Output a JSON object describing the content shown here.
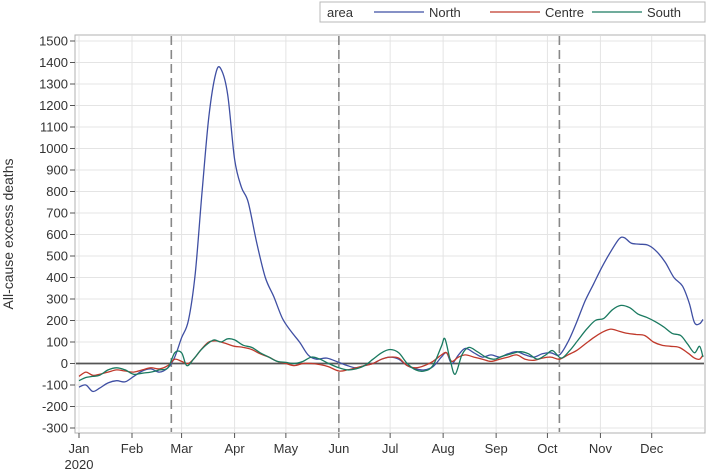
{
  "chart_data": {
    "type": "line",
    "xlabel": "",
    "ylabel": "All-cause excess deaths",
    "ylim": [
      -300,
      1500
    ],
    "yticks": [
      -300,
      -200,
      -100,
      0,
      100,
      200,
      300,
      400,
      500,
      600,
      700,
      800,
      900,
      1000,
      1100,
      1200,
      1300,
      1400,
      1500
    ],
    "xlim": [
      "2020-01-01",
      "2020-12-31"
    ],
    "xticks": [
      {
        "date": "2020-01-01",
        "label": "Jan",
        "sublabel": "2020"
      },
      {
        "date": "2020-02-01",
        "label": "Feb"
      },
      {
        "date": "2020-03-01",
        "label": "Mar"
      },
      {
        "date": "2020-04-01",
        "label": "Apr"
      },
      {
        "date": "2020-05-01",
        "label": "May"
      },
      {
        "date": "2020-06-01",
        "label": "Jun"
      },
      {
        "date": "2020-07-01",
        "label": "Jul"
      },
      {
        "date": "2020-08-01",
        "label": "Aug"
      },
      {
        "date": "2020-09-01",
        "label": "Sep"
      },
      {
        "date": "2020-10-01",
        "label": "Oct"
      },
      {
        "date": "2020-11-01",
        "label": "Nov"
      },
      {
        "date": "2020-12-01",
        "label": "Dec"
      }
    ],
    "grid": true,
    "reference_lines": {
      "horizontal": [
        0
      ],
      "vertical_dates": [
        "2020-02-24",
        "2020-06-01",
        "2020-10-08"
      ]
    },
    "legend": {
      "title": "area",
      "placement": "top-right"
    },
    "series": [
      {
        "name": "North",
        "color": "#3f4fa3",
        "points": [
          [
            "2020-01-01",
            -110
          ],
          [
            "2020-01-05",
            -100
          ],
          [
            "2020-01-09",
            -130
          ],
          [
            "2020-01-13",
            -115
          ],
          [
            "2020-01-18",
            -90
          ],
          [
            "2020-01-23",
            -80
          ],
          [
            "2020-01-28",
            -85
          ],
          [
            "2020-02-02",
            -60
          ],
          [
            "2020-02-07",
            -35
          ],
          [
            "2020-02-12",
            -25
          ],
          [
            "2020-02-17",
            -40
          ],
          [
            "2020-02-22",
            -20
          ],
          [
            "2020-02-26",
            30
          ],
          [
            "2020-03-01",
            120
          ],
          [
            "2020-03-05",
            200
          ],
          [
            "2020-03-09",
            420
          ],
          [
            "2020-03-13",
            800
          ],
          [
            "2020-03-17",
            1150
          ],
          [
            "2020-03-21",
            1350
          ],
          [
            "2020-03-24",
            1370
          ],
          [
            "2020-03-28",
            1250
          ],
          [
            "2020-04-01",
            950
          ],
          [
            "2020-04-05",
            820
          ],
          [
            "2020-04-09",
            750
          ],
          [
            "2020-04-14",
            560
          ],
          [
            "2020-04-19",
            400
          ],
          [
            "2020-04-24",
            310
          ],
          [
            "2020-04-29",
            210
          ],
          [
            "2020-05-04",
            150
          ],
          [
            "2020-05-09",
            100
          ],
          [
            "2020-05-14",
            40
          ],
          [
            "2020-05-19",
            20
          ],
          [
            "2020-05-25",
            25
          ],
          [
            "2020-06-01",
            5
          ],
          [
            "2020-06-06",
            -10
          ],
          [
            "2020-06-11",
            -20
          ],
          [
            "2020-06-16",
            -10
          ],
          [
            "2020-06-21",
            0
          ],
          [
            "2020-06-26",
            20
          ],
          [
            "2020-07-01",
            30
          ],
          [
            "2020-07-06",
            20
          ],
          [
            "2020-07-11",
            -10
          ],
          [
            "2020-07-16",
            -25
          ],
          [
            "2020-07-21",
            -30
          ],
          [
            "2020-07-26",
            -15
          ],
          [
            "2020-07-31",
            30
          ],
          [
            "2020-08-03",
            50
          ],
          [
            "2020-08-06",
            0
          ],
          [
            "2020-08-10",
            40
          ],
          [
            "2020-08-14",
            70
          ],
          [
            "2020-08-19",
            50
          ],
          [
            "2020-08-24",
            30
          ],
          [
            "2020-08-29",
            40
          ],
          [
            "2020-09-03",
            30
          ],
          [
            "2020-09-08",
            45
          ],
          [
            "2020-09-13",
            55
          ],
          [
            "2020-09-18",
            40
          ],
          [
            "2020-09-23",
            30
          ],
          [
            "2020-09-28",
            45
          ],
          [
            "2020-10-03",
            50
          ],
          [
            "2020-10-08",
            40
          ],
          [
            "2020-10-13",
            100
          ],
          [
            "2020-10-18",
            190
          ],
          [
            "2020-10-23",
            290
          ],
          [
            "2020-10-28",
            370
          ],
          [
            "2020-11-02",
            450
          ],
          [
            "2020-11-07",
            520
          ],
          [
            "2020-11-12",
            580
          ],
          [
            "2020-11-15",
            585
          ],
          [
            "2020-11-19",
            560
          ],
          [
            "2020-11-24",
            555
          ],
          [
            "2020-11-29",
            550
          ],
          [
            "2020-12-04",
            520
          ],
          [
            "2020-12-09",
            470
          ],
          [
            "2020-12-14",
            400
          ],
          [
            "2020-12-19",
            360
          ],
          [
            "2020-12-23",
            280
          ],
          [
            "2020-12-26",
            190
          ],
          [
            "2020-12-29",
            185
          ],
          [
            "2020-12-31",
            205
          ]
        ]
      },
      {
        "name": "Centre",
        "color": "#c0392b",
        "points": [
          [
            "2020-01-01",
            -60
          ],
          [
            "2020-01-05",
            -40
          ],
          [
            "2020-01-09",
            -55
          ],
          [
            "2020-01-13",
            -50
          ],
          [
            "2020-01-18",
            -40
          ],
          [
            "2020-01-23",
            -30
          ],
          [
            "2020-01-28",
            -35
          ],
          [
            "2020-02-02",
            -40
          ],
          [
            "2020-02-07",
            -30
          ],
          [
            "2020-02-12",
            -20
          ],
          [
            "2020-02-17",
            -25
          ],
          [
            "2020-02-22",
            -10
          ],
          [
            "2020-02-26",
            20
          ],
          [
            "2020-03-01",
            10
          ],
          [
            "2020-03-05",
            0
          ],
          [
            "2020-03-09",
            30
          ],
          [
            "2020-03-13",
            70
          ],
          [
            "2020-03-17",
            100
          ],
          [
            "2020-03-21",
            105
          ],
          [
            "2020-03-24",
            100
          ],
          [
            "2020-03-28",
            90
          ],
          [
            "2020-04-01",
            80
          ],
          [
            "2020-04-06",
            75
          ],
          [
            "2020-04-11",
            65
          ],
          [
            "2020-04-16",
            45
          ],
          [
            "2020-04-21",
            30
          ],
          [
            "2020-04-26",
            10
          ],
          [
            "2020-05-01",
            0
          ],
          [
            "2020-05-06",
            -10
          ],
          [
            "2020-05-11",
            0
          ],
          [
            "2020-05-16",
            0
          ],
          [
            "2020-05-21",
            -5
          ],
          [
            "2020-05-26",
            -15
          ],
          [
            "2020-06-01",
            -35
          ],
          [
            "2020-06-06",
            -30
          ],
          [
            "2020-06-11",
            -20
          ],
          [
            "2020-06-16",
            -10
          ],
          [
            "2020-06-21",
            0
          ],
          [
            "2020-06-26",
            20
          ],
          [
            "2020-07-01",
            30
          ],
          [
            "2020-07-06",
            25
          ],
          [
            "2020-07-11",
            -10
          ],
          [
            "2020-07-16",
            -20
          ],
          [
            "2020-07-21",
            -10
          ],
          [
            "2020-07-26",
            10
          ],
          [
            "2020-07-31",
            40
          ],
          [
            "2020-08-03",
            50
          ],
          [
            "2020-08-06",
            10
          ],
          [
            "2020-08-10",
            30
          ],
          [
            "2020-08-14",
            40
          ],
          [
            "2020-08-19",
            30
          ],
          [
            "2020-08-24",
            20
          ],
          [
            "2020-08-29",
            10
          ],
          [
            "2020-09-03",
            20
          ],
          [
            "2020-09-08",
            30
          ],
          [
            "2020-09-13",
            40
          ],
          [
            "2020-09-18",
            20
          ],
          [
            "2020-09-23",
            15
          ],
          [
            "2020-09-28",
            25
          ],
          [
            "2020-10-03",
            30
          ],
          [
            "2020-10-08",
            20
          ],
          [
            "2020-10-13",
            40
          ],
          [
            "2020-10-18",
            60
          ],
          [
            "2020-10-23",
            90
          ],
          [
            "2020-10-28",
            120
          ],
          [
            "2020-11-02",
            145
          ],
          [
            "2020-11-07",
            160
          ],
          [
            "2020-11-12",
            150
          ],
          [
            "2020-11-17",
            140
          ],
          [
            "2020-11-22",
            135
          ],
          [
            "2020-11-27",
            130
          ],
          [
            "2020-12-02",
            100
          ],
          [
            "2020-12-07",
            85
          ],
          [
            "2020-12-12",
            80
          ],
          [
            "2020-12-17",
            75
          ],
          [
            "2020-12-22",
            50
          ],
          [
            "2020-12-26",
            25
          ],
          [
            "2020-12-29",
            20
          ],
          [
            "2020-12-31",
            40
          ]
        ]
      },
      {
        "name": "South",
        "color": "#1a7a60",
        "points": [
          [
            "2020-01-01",
            -80
          ],
          [
            "2020-01-05",
            -65
          ],
          [
            "2020-01-09",
            -60
          ],
          [
            "2020-01-13",
            -55
          ],
          [
            "2020-01-18",
            -30
          ],
          [
            "2020-01-23",
            -20
          ],
          [
            "2020-01-28",
            -30
          ],
          [
            "2020-02-02",
            -50
          ],
          [
            "2020-02-07",
            -45
          ],
          [
            "2020-02-12",
            -40
          ],
          [
            "2020-02-17",
            -30
          ],
          [
            "2020-02-22",
            -20
          ],
          [
            "2020-02-26",
            50
          ],
          [
            "2020-03-01",
            50
          ],
          [
            "2020-03-04",
            -10
          ],
          [
            "2020-03-08",
            20
          ],
          [
            "2020-03-12",
            60
          ],
          [
            "2020-03-16",
            90
          ],
          [
            "2020-03-20",
            110
          ],
          [
            "2020-03-24",
            100
          ],
          [
            "2020-03-28",
            115
          ],
          [
            "2020-04-01",
            110
          ],
          [
            "2020-04-06",
            85
          ],
          [
            "2020-04-11",
            75
          ],
          [
            "2020-04-16",
            50
          ],
          [
            "2020-04-21",
            30
          ],
          [
            "2020-04-26",
            10
          ],
          [
            "2020-05-01",
            5
          ],
          [
            "2020-05-06",
            0
          ],
          [
            "2020-05-11",
            10
          ],
          [
            "2020-05-16",
            30
          ],
          [
            "2020-05-21",
            20
          ],
          [
            "2020-05-26",
            0
          ],
          [
            "2020-06-01",
            -20
          ],
          [
            "2020-06-06",
            -30
          ],
          [
            "2020-06-11",
            -25
          ],
          [
            "2020-06-16",
            -10
          ],
          [
            "2020-06-21",
            20
          ],
          [
            "2020-06-26",
            50
          ],
          [
            "2020-07-01",
            65
          ],
          [
            "2020-07-06",
            50
          ],
          [
            "2020-07-11",
            0
          ],
          [
            "2020-07-16",
            -30
          ],
          [
            "2020-07-21",
            -35
          ],
          [
            "2020-07-26",
            -10
          ],
          [
            "2020-07-31",
            80
          ],
          [
            "2020-08-02",
            115
          ],
          [
            "2020-08-05",
            20
          ],
          [
            "2020-08-08",
            -50
          ],
          [
            "2020-08-12",
            40
          ],
          [
            "2020-08-16",
            75
          ],
          [
            "2020-08-21",
            55
          ],
          [
            "2020-08-26",
            30
          ],
          [
            "2020-08-31",
            20
          ],
          [
            "2020-09-05",
            35
          ],
          [
            "2020-09-10",
            45
          ],
          [
            "2020-09-15",
            55
          ],
          [
            "2020-09-20",
            45
          ],
          [
            "2020-09-25",
            20
          ],
          [
            "2020-09-30",
            40
          ],
          [
            "2020-10-04",
            60
          ],
          [
            "2020-10-09",
            25
          ],
          [
            "2020-10-14",
            60
          ],
          [
            "2020-10-19",
            110
          ],
          [
            "2020-10-24",
            160
          ],
          [
            "2020-10-29",
            200
          ],
          [
            "2020-11-03",
            210
          ],
          [
            "2020-11-08",
            250
          ],
          [
            "2020-11-13",
            270
          ],
          [
            "2020-11-18",
            260
          ],
          [
            "2020-11-23",
            230
          ],
          [
            "2020-11-28",
            215
          ],
          [
            "2020-12-03",
            195
          ],
          [
            "2020-12-08",
            170
          ],
          [
            "2020-12-13",
            140
          ],
          [
            "2020-12-18",
            130
          ],
          [
            "2020-12-22",
            90
          ],
          [
            "2020-12-26",
            50
          ],
          [
            "2020-12-29",
            80
          ],
          [
            "2020-12-31",
            30
          ]
        ]
      }
    ]
  }
}
